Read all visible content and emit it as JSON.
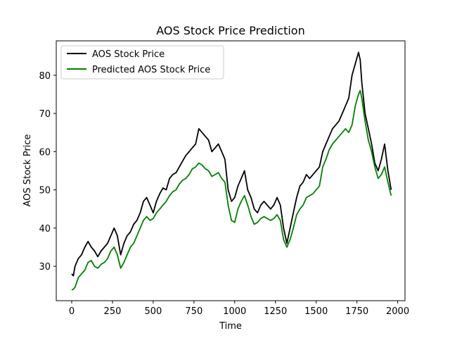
{
  "chart_data": {
    "type": "line",
    "title": "AOS Stock Price Prediction",
    "xlabel": "Time",
    "ylabel": "AOS Stock Price",
    "xlim": [
      -95,
      2045
    ],
    "ylim": [
      21,
      89
    ],
    "xticks": [
      0,
      250,
      500,
      750,
      1000,
      1250,
      1500,
      1750,
      2000
    ],
    "yticks": [
      30,
      40,
      50,
      60,
      70,
      80
    ],
    "grid": false,
    "legend_position": "top-left",
    "series": [
      {
        "name": "AOS Stock Price",
        "color": "#000000",
        "x": [
          0,
          10,
          20,
          40,
          60,
          80,
          100,
          120,
          140,
          160,
          180,
          200,
          220,
          240,
          260,
          280,
          300,
          320,
          340,
          360,
          380,
          400,
          420,
          440,
          460,
          480,
          500,
          520,
          540,
          560,
          580,
          600,
          620,
          640,
          660,
          680,
          700,
          720,
          740,
          760,
          780,
          800,
          820,
          840,
          860,
          880,
          900,
          920,
          940,
          960,
          980,
          1000,
          1020,
          1040,
          1060,
          1080,
          1100,
          1120,
          1140,
          1160,
          1180,
          1200,
          1220,
          1240,
          1260,
          1280,
          1300,
          1320,
          1340,
          1360,
          1380,
          1400,
          1420,
          1440,
          1460,
          1480,
          1500,
          1520,
          1540,
          1560,
          1580,
          1600,
          1620,
          1640,
          1660,
          1680,
          1700,
          1720,
          1740,
          1760,
          1770,
          1780,
          1800,
          1820,
          1840,
          1860,
          1880,
          1900,
          1920,
          1940,
          1960
        ],
        "y": [
          28,
          27.5,
          30,
          32,
          33,
          35,
          36.5,
          35,
          34,
          32.5,
          34,
          35,
          36,
          38,
          40,
          38,
          33,
          36,
          38,
          39,
          41,
          42,
          44,
          47,
          48,
          46,
          44,
          47,
          49,
          50.5,
          50,
          53,
          54,
          54.5,
          56,
          57.5,
          59,
          60,
          61,
          62,
          66,
          65,
          64,
          63,
          60,
          61,
          62,
          60,
          58,
          50,
          47,
          48,
          51,
          53,
          55,
          50,
          48,
          45,
          44,
          46,
          47,
          46,
          45,
          46,
          48,
          46,
          40,
          36,
          40,
          44,
          48,
          51,
          52,
          54,
          53,
          54,
          55,
          56,
          60,
          62,
          64,
          66,
          67,
          68,
          70,
          72,
          74,
          80,
          83,
          86,
          84,
          78,
          70,
          66,
          62,
          57,
          55,
          58,
          62,
          55,
          50
        ]
      },
      {
        "name": "Predicted AOS Stock Price",
        "color": "#008000",
        "x": [
          0,
          10,
          20,
          40,
          60,
          80,
          100,
          120,
          140,
          160,
          180,
          200,
          220,
          240,
          260,
          280,
          300,
          320,
          340,
          360,
          380,
          400,
          420,
          440,
          460,
          480,
          500,
          520,
          540,
          560,
          580,
          600,
          620,
          640,
          660,
          680,
          700,
          720,
          740,
          760,
          780,
          800,
          820,
          840,
          860,
          880,
          900,
          920,
          940,
          960,
          980,
          1000,
          1020,
          1040,
          1060,
          1080,
          1100,
          1120,
          1140,
          1160,
          1180,
          1200,
          1220,
          1240,
          1260,
          1280,
          1300,
          1320,
          1340,
          1360,
          1380,
          1400,
          1420,
          1440,
          1460,
          1480,
          1500,
          1520,
          1540,
          1560,
          1580,
          1600,
          1620,
          1640,
          1660,
          1680,
          1700,
          1720,
          1740,
          1760,
          1770,
          1780,
          1800,
          1820,
          1840,
          1860,
          1880,
          1900,
          1920,
          1940,
          1960
        ],
        "y": [
          23.8,
          24,
          24.5,
          27,
          28,
          29,
          31,
          31.5,
          30,
          29.5,
          30.5,
          31,
          32,
          34,
          35,
          33,
          29.5,
          31,
          33,
          35,
          36,
          38,
          40,
          42,
          43,
          42,
          42.5,
          44,
          45,
          46,
          47,
          48.5,
          49.5,
          50,
          51.5,
          52.5,
          53,
          54,
          55.5,
          56,
          57,
          56.5,
          55.5,
          55,
          53.5,
          54,
          54.5,
          53,
          52,
          46,
          42,
          41.5,
          45,
          47,
          48.5,
          46,
          43,
          41,
          41.5,
          42.5,
          43,
          42.5,
          42,
          42.5,
          43.5,
          42,
          37,
          35,
          37,
          40,
          43.5,
          45,
          46,
          48,
          48.5,
          49,
          50,
          51,
          56,
          58,
          60.5,
          62,
          63,
          64,
          65,
          66,
          65,
          67,
          72,
          75,
          76,
          74,
          68,
          63,
          60,
          56,
          53,
          54,
          56,
          52,
          48.5
        ]
      }
    ]
  }
}
